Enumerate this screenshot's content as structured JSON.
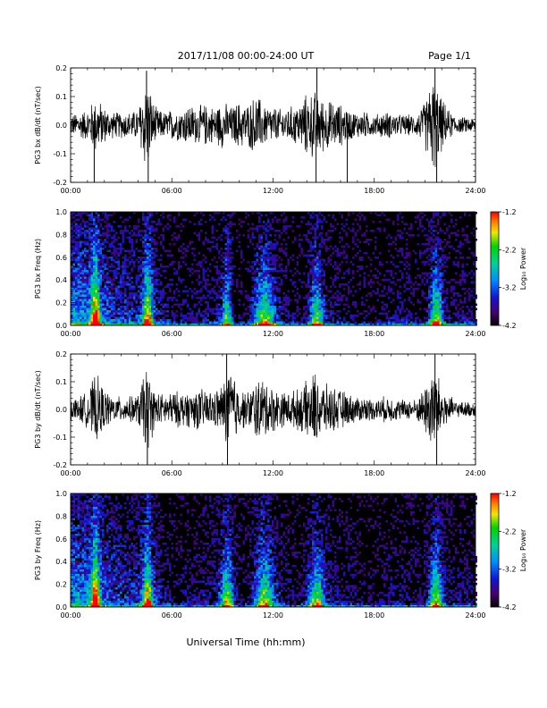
{
  "header": {
    "date_range": "2017/11/08  00:00-24:00 UT",
    "page": "Page 1/1"
  },
  "xlabel": "Universal Time (hh:mm)",
  "chart_data": [
    {
      "type": "line",
      "ylabel": "PG3 bx dB/dt (nT/sec)",
      "xlim": [
        0,
        24
      ],
      "ylim": [
        -0.2,
        0.2
      ],
      "x_ticks": [
        "00:00",
        "06:00",
        "12:00",
        "18:00",
        "24:00"
      ],
      "y_ticks": [
        "-0.2",
        "-0.1",
        "0.0",
        "0.1",
        "0.2"
      ],
      "envelope_x_hours": [
        0,
        0.5,
        1,
        1.5,
        2,
        2.5,
        3,
        3.5,
        4,
        4.5,
        5,
        5.5,
        6,
        6.5,
        7,
        7.5,
        8,
        8.5,
        9,
        9.5,
        10,
        10.5,
        11,
        11.5,
        12,
        12.5,
        13,
        13.5,
        14,
        14.5,
        15,
        15.5,
        16,
        16.5,
        17,
        17.5,
        18,
        18.5,
        19,
        19.5,
        20,
        20.5,
        21,
        21.5,
        22,
        22.5,
        23,
        23.5,
        24
      ],
      "envelope_amplitude": [
        0.04,
        0.05,
        0.06,
        0.11,
        0.07,
        0.05,
        0.05,
        0.05,
        0.06,
        0.19,
        0.07,
        0.05,
        0.06,
        0.06,
        0.08,
        0.07,
        0.08,
        0.07,
        0.09,
        0.07,
        0.09,
        0.08,
        0.12,
        0.08,
        0.07,
        0.06,
        0.07,
        0.08,
        0.12,
        0.13,
        0.1,
        0.09,
        0.08,
        0.06,
        0.05,
        0.05,
        0.04,
        0.05,
        0.05,
        0.04,
        0.04,
        0.04,
        0.09,
        0.19,
        0.1,
        0.05,
        0.03,
        0.03,
        0.03
      ],
      "spikes": [
        {
          "t": 1.4,
          "y": -0.2
        },
        {
          "t": 4.5,
          "y": 0.19
        },
        {
          "t": 4.6,
          "y": -0.2
        },
        {
          "t": 14.55,
          "y": -0.2
        },
        {
          "t": 14.6,
          "y": 0.2
        },
        {
          "t": 16.4,
          "y": -0.2
        },
        {
          "t": 21.6,
          "y": 0.2
        },
        {
          "t": 21.7,
          "y": -0.2
        }
      ]
    },
    {
      "type": "heatmap",
      "ylabel": "PG3 bx Freq (Hz)",
      "colorbar_label": "Log₁₀ Power",
      "xlim": [
        0,
        24
      ],
      "ylim": [
        0.0,
        1.0
      ],
      "x_ticks": [
        "00:00",
        "06:00",
        "12:00",
        "18:00",
        "24:00"
      ],
      "y_ticks": [
        "0.0",
        "0.2",
        "0.4",
        "0.6",
        "0.8",
        "1.0"
      ],
      "colorbar_range": [
        -4.2,
        -1.2
      ],
      "colorbar_ticks": [
        "-1.2",
        "-2.2",
        "-3.2",
        "-4.2"
      ],
      "activity_bands": [
        {
          "t": 1.4,
          "w": 0.25,
          "a": 1.0
        },
        {
          "t": 4.5,
          "w": 0.3,
          "a": 1.0
        },
        {
          "t": 9.2,
          "w": 0.3,
          "a": 0.8
        },
        {
          "t": 11.4,
          "w": 0.6,
          "a": 0.9
        },
        {
          "t": 14.5,
          "w": 0.4,
          "a": 0.9
        },
        {
          "t": 21.6,
          "w": 0.4,
          "a": 1.0
        }
      ]
    },
    {
      "type": "line",
      "ylabel": "PG3 by dB/dt (nT/sec)",
      "xlim": [
        0,
        24
      ],
      "ylim": [
        -0.2,
        0.2
      ],
      "x_ticks": [
        "00:00",
        "06:00",
        "12:00",
        "18:00",
        "24:00"
      ],
      "y_ticks": [
        "-0.2",
        "-0.1",
        "0.0",
        "0.1",
        "0.2"
      ],
      "envelope_x_hours": [
        0,
        0.5,
        1,
        1.5,
        2,
        2.5,
        3,
        3.5,
        4,
        4.5,
        5,
        5.5,
        6,
        6.5,
        7,
        7.5,
        8,
        8.5,
        9,
        9.5,
        10,
        10.5,
        11,
        11.5,
        12,
        12.5,
        13,
        13.5,
        14,
        14.5,
        15,
        15.5,
        16,
        16.5,
        17,
        17.5,
        18,
        18.5,
        19,
        19.5,
        20,
        20.5,
        21,
        21.5,
        22,
        22.5,
        23,
        23.5,
        24
      ],
      "envelope_amplitude": [
        0.04,
        0.05,
        0.07,
        0.14,
        0.08,
        0.05,
        0.05,
        0.05,
        0.06,
        0.18,
        0.07,
        0.06,
        0.07,
        0.07,
        0.07,
        0.08,
        0.08,
        0.07,
        0.1,
        0.18,
        0.08,
        0.07,
        0.12,
        0.12,
        0.09,
        0.07,
        0.07,
        0.08,
        0.11,
        0.15,
        0.1,
        0.09,
        0.08,
        0.06,
        0.05,
        0.05,
        0.04,
        0.05,
        0.05,
        0.04,
        0.04,
        0.04,
        0.09,
        0.19,
        0.09,
        0.05,
        0.03,
        0.03,
        0.03
      ],
      "spikes": [
        {
          "t": 4.55,
          "y": -0.2
        },
        {
          "t": 9.25,
          "y": 0.2
        },
        {
          "t": 9.3,
          "y": -0.2
        },
        {
          "t": 21.6,
          "y": 0.2
        },
        {
          "t": 21.7,
          "y": -0.2
        }
      ]
    },
    {
      "type": "heatmap",
      "ylabel": "PG3 by Freq (Hz)",
      "colorbar_label": "Log₁₀ Power",
      "xlim": [
        0,
        24
      ],
      "ylim": [
        0.0,
        1.0
      ],
      "x_ticks": [
        "00:00",
        "06:00",
        "12:00",
        "18:00",
        "24:00"
      ],
      "y_ticks": [
        "0.0",
        "0.2",
        "0.4",
        "0.6",
        "0.8",
        "1.0"
      ],
      "colorbar_range": [
        -4.2,
        -1.2
      ],
      "colorbar_ticks": [
        "-1.2",
        "-2.2",
        "-3.2",
        "-4.2"
      ],
      "activity_bands": [
        {
          "t": 1.4,
          "w": 0.25,
          "a": 1.0
        },
        {
          "t": 4.5,
          "w": 0.3,
          "a": 1.0
        },
        {
          "t": 9.2,
          "w": 0.4,
          "a": 0.9
        },
        {
          "t": 11.4,
          "w": 0.6,
          "a": 0.9
        },
        {
          "t": 14.5,
          "w": 0.5,
          "a": 0.9
        },
        {
          "t": 21.6,
          "w": 0.4,
          "a": 1.0
        }
      ]
    }
  ]
}
